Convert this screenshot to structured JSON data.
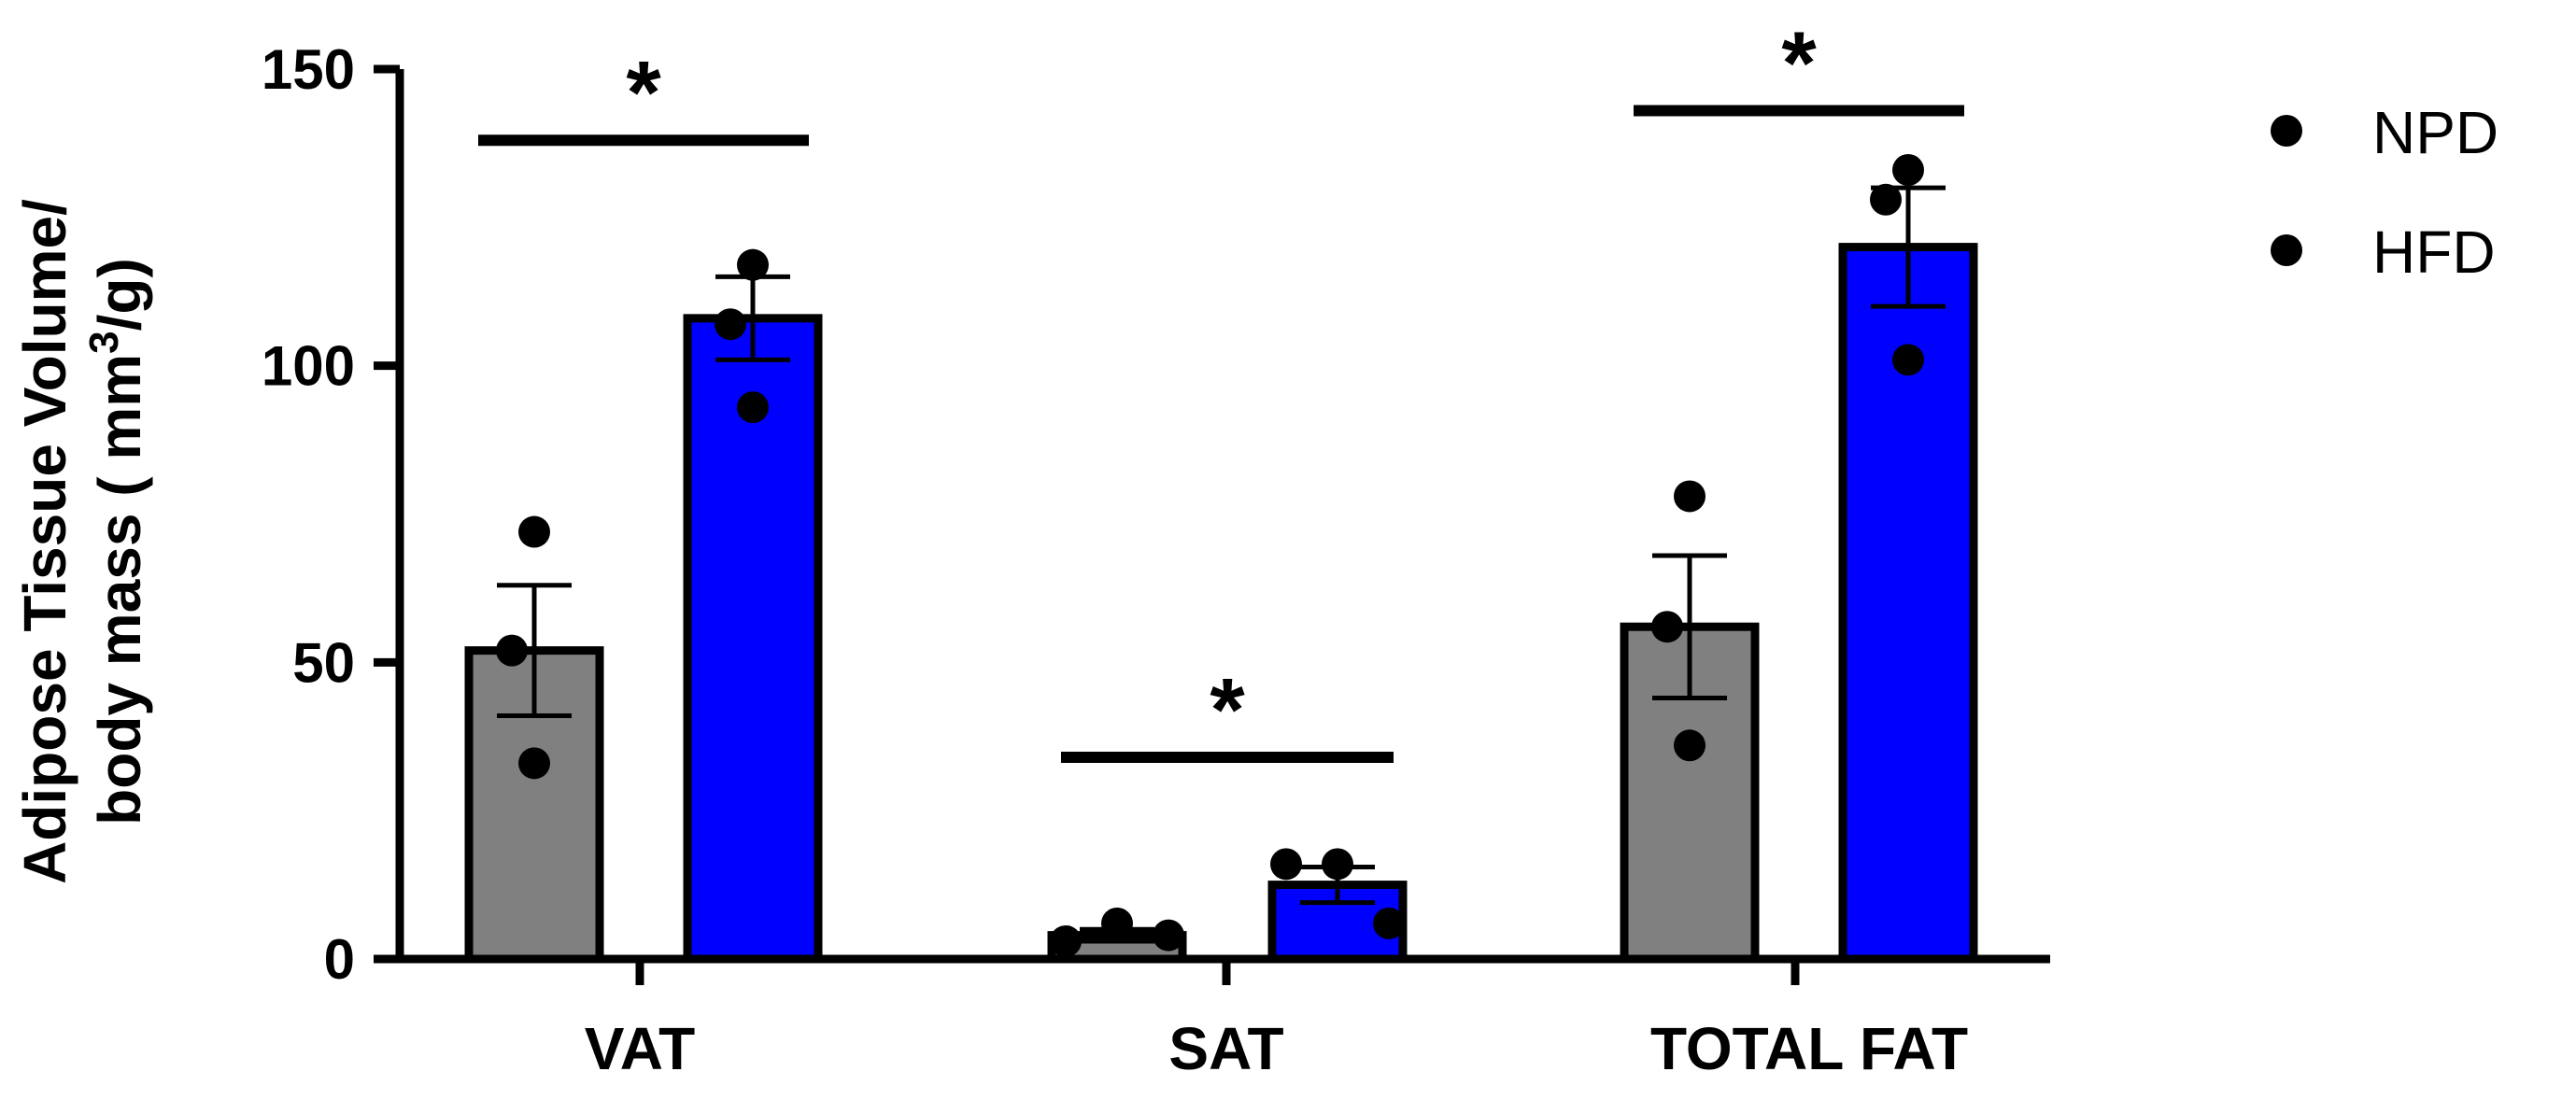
{
  "chart_data": {
    "type": "bar",
    "title": "",
    "xlabel": "",
    "ylabel_line1": "Adipose Tissue Volume/",
    "ylabel_line2_prefix": "body mass ( mm",
    "ylabel_line2_sup": "3",
    "ylabel_line2_suffix": "/g)",
    "ylim": [
      0,
      150
    ],
    "yticks": [
      "0",
      "50",
      "100",
      "150"
    ],
    "categories": [
      "VAT",
      "SAT",
      "TOTAL FAT"
    ],
    "series": [
      {
        "name": "NPD",
        "color": "#808080",
        "values": [
          52,
          4,
          56
        ],
        "errors": [
          11,
          1,
          12
        ],
        "points": [
          [
            72,
            52,
            33
          ],
          [
            3,
            6,
            4
          ],
          [
            78,
            56,
            36
          ]
        ]
      },
      {
        "name": "HFD",
        "color": "#0000ff",
        "values": [
          108,
          12.5,
          120
        ],
        "errors": [
          7,
          3,
          10
        ],
        "points": [
          [
            117,
            107,
            93
          ],
          [
            16,
            16,
            6
          ],
          [
            133,
            128,
            101
          ]
        ]
      }
    ],
    "significance": [
      {
        "category": "VAT",
        "label": "*",
        "y": 138
      },
      {
        "category": "SAT",
        "label": "*",
        "y": 34
      },
      {
        "category": "TOTAL FAT",
        "label": "*",
        "y": 143
      }
    ],
    "legend": {
      "placement": "top-right",
      "entries": [
        "NPD",
        "HFD"
      ]
    },
    "grid": false
  }
}
